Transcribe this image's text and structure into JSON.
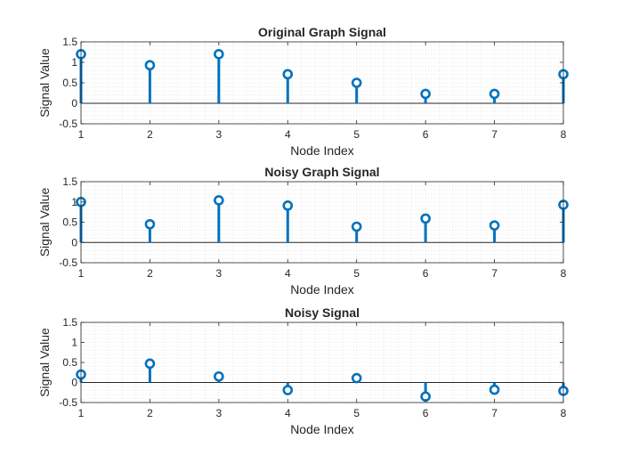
{
  "chart_data": [
    {
      "type": "stem",
      "title": "Original Graph Signal",
      "xlabel": "Node Index",
      "ylabel": "Signal Value",
      "xlim": [
        1,
        8
      ],
      "ylim": [
        -0.5,
        1.5
      ],
      "xticks": [
        "1",
        "2",
        "3",
        "4",
        "5",
        "6",
        "7",
        "8"
      ],
      "yticks": [
        "-0.5",
        "0",
        "0.5",
        "1",
        "1.5"
      ],
      "grid": "minor",
      "x": [
        1,
        2,
        3,
        4,
        5,
        6,
        7,
        8
      ],
      "values": [
        1.2,
        0.93,
        1.2,
        0.71,
        0.5,
        0.23,
        0.23,
        0.71
      ]
    },
    {
      "type": "stem",
      "title": "Noisy Graph Signal",
      "xlabel": "Node Index",
      "ylabel": "Signal Value",
      "xlim": [
        1,
        8
      ],
      "ylim": [
        -0.5,
        1.5
      ],
      "xticks": [
        "1",
        "2",
        "3",
        "4",
        "5",
        "6",
        "7",
        "8"
      ],
      "yticks": [
        "-0.5",
        "0",
        "0.5",
        "1",
        "1.5"
      ],
      "grid": "minor",
      "x": [
        1,
        2,
        3,
        4,
        5,
        6,
        7,
        8
      ],
      "values": [
        1.0,
        0.45,
        1.04,
        0.91,
        0.39,
        0.59,
        0.42,
        0.93
      ]
    },
    {
      "type": "stem",
      "title": "Noisy Signal",
      "xlabel": "Node Index",
      "ylabel": "Signal Value",
      "xlim": [
        1,
        8
      ],
      "ylim": [
        -0.5,
        1.5
      ],
      "xticks": [
        "1",
        "2",
        "3",
        "4",
        "5",
        "6",
        "7",
        "8"
      ],
      "yticks": [
        "-0.5",
        "0",
        "0.5",
        "1",
        "1.5"
      ],
      "grid": "minor",
      "x": [
        1,
        2,
        3,
        4,
        5,
        6,
        7,
        8
      ],
      "values": [
        0.2,
        0.47,
        0.15,
        -0.19,
        0.11,
        -0.35,
        -0.18,
        -0.21
      ]
    }
  ],
  "style": {
    "stem_color": "#0072bd",
    "axis_color": "#262626",
    "grid_color": "#dcdcdc",
    "baseline_color": "#262626"
  }
}
